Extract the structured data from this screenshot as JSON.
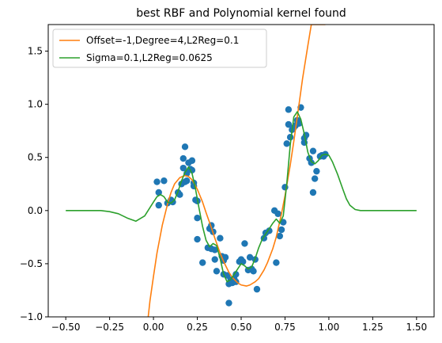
{
  "chart_data": {
    "type": "scatter",
    "title": "best RBF and Polynomial kernel found",
    "xlabel": "",
    "ylabel": "",
    "xlim": [
      -0.6,
      1.6
    ],
    "ylim": [
      -1.0,
      1.75
    ],
    "x_ticks": [
      -0.5,
      -0.25,
      0.0,
      0.25,
      0.5,
      0.75,
      1.0,
      1.25,
      1.5
    ],
    "x_tick_labels": [
      "−0.50",
      "−0.25",
      "0.00",
      "0.25",
      "0.50",
      "0.75",
      "1.00",
      "1.25",
      "1.50"
    ],
    "y_ticks": [
      -1.0,
      -0.5,
      0.0,
      0.5,
      1.0,
      1.5
    ],
    "y_tick_labels": [
      "−1.0",
      "−0.5",
      "0.0",
      "0.5",
      "1.0",
      "1.5"
    ],
    "grid": false,
    "legend": {
      "placement": "upper-left",
      "entries": [
        {
          "label": "Offset=-1,Degree=4,L2Reg=0.1",
          "color": "#ff7f0e"
        },
        {
          "label": "Sigma=0.1,L2Reg=0.0625",
          "color": "#2ca02c"
        }
      ]
    },
    "scatter": {
      "color": "#1f77b4",
      "points": [
        [
          0.02,
          0.27
        ],
        [
          0.03,
          0.17
        ],
        [
          0.03,
          0.05
        ],
        [
          0.06,
          0.28
        ],
        [
          0.08,
          0.07
        ],
        [
          0.1,
          0.1
        ],
        [
          0.11,
          0.08
        ],
        [
          0.14,
          0.17
        ],
        [
          0.15,
          0.15
        ],
        [
          0.16,
          0.25
        ],
        [
          0.17,
          0.4
        ],
        [
          0.17,
          0.49
        ],
        [
          0.18,
          0.6
        ],
        [
          0.18,
          0.27
        ],
        [
          0.19,
          0.35
        ],
        [
          0.19,
          0.28
        ],
        [
          0.2,
          0.45
        ],
        [
          0.21,
          0.39
        ],
        [
          0.22,
          0.47
        ],
        [
          0.22,
          0.38
        ],
        [
          0.23,
          0.23
        ],
        [
          0.23,
          0.26
        ],
        [
          0.24,
          0.1
        ],
        [
          0.25,
          0.09
        ],
        [
          0.25,
          -0.07
        ],
        [
          0.25,
          -0.27
        ],
        [
          0.28,
          -0.49
        ],
        [
          0.31,
          -0.35
        ],
        [
          0.32,
          -0.17
        ],
        [
          0.33,
          -0.14
        ],
        [
          0.33,
          -0.36
        ],
        [
          0.34,
          -0.2
        ],
        [
          0.35,
          -0.37
        ],
        [
          0.35,
          -0.46
        ],
        [
          0.36,
          -0.57
        ],
        [
          0.38,
          -0.26
        ],
        [
          0.39,
          -0.43
        ],
        [
          0.4,
          -0.47
        ],
        [
          0.4,
          -0.6
        ],
        [
          0.41,
          -0.44
        ],
        [
          0.42,
          -0.61
        ],
        [
          0.43,
          -0.69
        ],
        [
          0.43,
          -0.87
        ],
        [
          0.44,
          -0.65
        ],
        [
          0.45,
          -0.68
        ],
        [
          0.46,
          -0.64
        ],
        [
          0.47,
          -0.6
        ],
        [
          0.47,
          -0.67
        ],
        [
          0.49,
          -0.48
        ],
        [
          0.5,
          -0.46
        ],
        [
          0.51,
          -0.48
        ],
        [
          0.52,
          -0.31
        ],
        [
          0.54,
          -0.56
        ],
        [
          0.55,
          -0.44
        ],
        [
          0.56,
          -0.55
        ],
        [
          0.57,
          -0.57
        ],
        [
          0.58,
          -0.46
        ],
        [
          0.59,
          -0.74
        ],
        [
          0.63,
          -0.26
        ],
        [
          0.64,
          -0.21
        ],
        [
          0.66,
          -0.19
        ],
        [
          0.69,
          0.0
        ],
        [
          0.7,
          -0.49
        ],
        [
          0.71,
          -0.03
        ],
        [
          0.72,
          -0.24
        ],
        [
          0.73,
          -0.18
        ],
        [
          0.74,
          -0.11
        ],
        [
          0.75,
          0.22
        ],
        [
          0.76,
          0.63
        ],
        [
          0.77,
          0.81
        ],
        [
          0.77,
          0.95
        ],
        [
          0.78,
          0.69
        ],
        [
          0.79,
          0.76
        ],
        [
          0.8,
          0.78
        ],
        [
          0.81,
          0.8
        ],
        [
          0.82,
          0.85
        ],
        [
          0.83,
          0.82
        ],
        [
          0.84,
          0.97
        ],
        [
          0.86,
          0.68
        ],
        [
          0.86,
          0.64
        ],
        [
          0.87,
          0.71
        ],
        [
          0.89,
          0.49
        ],
        [
          0.9,
          0.45
        ],
        [
          0.91,
          0.56
        ],
        [
          0.91,
          0.17
        ],
        [
          0.92,
          0.3
        ],
        [
          0.93,
          0.37
        ],
        [
          0.95,
          0.51
        ],
        [
          0.96,
          0.52
        ],
        [
          0.97,
          0.51
        ],
        [
          0.98,
          0.53
        ]
      ]
    },
    "series": [
      {
        "name": "Offset=-1,Degree=4,L2Reg=0.1",
        "color": "#ff7f0e",
        "type": "line",
        "x": [
          -0.03,
          -0.02,
          0.0,
          0.02,
          0.05,
          0.08,
          0.1,
          0.12,
          0.15,
          0.18,
          0.2,
          0.22,
          0.25,
          0.28,
          0.3,
          0.33,
          0.35,
          0.38,
          0.4,
          0.43,
          0.45,
          0.48,
          0.5,
          0.53,
          0.55,
          0.58,
          0.6,
          0.63,
          0.65,
          0.68,
          0.7,
          0.73,
          0.75,
          0.78,
          0.8,
          0.83,
          0.85,
          0.88,
          0.9,
          0.93,
          0.95,
          0.98
        ],
        "y": [
          -1.0,
          -0.85,
          -0.62,
          -0.4,
          -0.14,
          0.06,
          0.17,
          0.25,
          0.31,
          0.33,
          0.32,
          0.29,
          0.2,
          0.08,
          -0.02,
          -0.16,
          -0.26,
          -0.4,
          -0.48,
          -0.58,
          -0.63,
          -0.68,
          -0.7,
          -0.71,
          -0.7,
          -0.67,
          -0.64,
          -0.56,
          -0.49,
          -0.36,
          -0.25,
          -0.03,
          0.14,
          0.43,
          0.65,
          1.0,
          1.24,
          1.55,
          1.75,
          1.75,
          1.75,
          1.75
        ]
      },
      {
        "name": "Sigma=0.1,L2Reg=0.0625",
        "color": "#2ca02c",
        "type": "line",
        "x": [
          -0.5,
          -0.4,
          -0.3,
          -0.25,
          -0.2,
          -0.15,
          -0.1,
          -0.05,
          0.0,
          0.02,
          0.04,
          0.06,
          0.08,
          0.1,
          0.12,
          0.14,
          0.16,
          0.18,
          0.2,
          0.22,
          0.24,
          0.26,
          0.28,
          0.3,
          0.32,
          0.34,
          0.36,
          0.38,
          0.4,
          0.42,
          0.44,
          0.46,
          0.48,
          0.5,
          0.52,
          0.54,
          0.56,
          0.58,
          0.6,
          0.62,
          0.64,
          0.66,
          0.68,
          0.7,
          0.72,
          0.74,
          0.76,
          0.78,
          0.8,
          0.82,
          0.84,
          0.86,
          0.88,
          0.9,
          0.92,
          0.94,
          0.96,
          0.98,
          1.0,
          1.02,
          1.05,
          1.08,
          1.1,
          1.12,
          1.15,
          1.18,
          1.2,
          1.25,
          1.3,
          1.4,
          1.5
        ],
        "y": [
          0.0,
          0.0,
          0.0,
          -0.01,
          -0.03,
          -0.07,
          -0.1,
          -0.05,
          0.08,
          0.13,
          0.15,
          0.13,
          0.08,
          0.07,
          0.1,
          0.18,
          0.28,
          0.36,
          0.41,
          0.35,
          0.2,
          0.02,
          -0.15,
          -0.28,
          -0.34,
          -0.31,
          -0.33,
          -0.45,
          -0.6,
          -0.67,
          -0.65,
          -0.6,
          -0.55,
          -0.5,
          -0.52,
          -0.55,
          -0.53,
          -0.45,
          -0.35,
          -0.27,
          -0.22,
          -0.17,
          -0.12,
          -0.08,
          -0.12,
          -0.05,
          0.25,
          0.62,
          0.88,
          0.93,
          0.86,
          0.72,
          0.55,
          0.46,
          0.44,
          0.47,
          0.52,
          0.53,
          0.52,
          0.46,
          0.34,
          0.2,
          0.11,
          0.05,
          0.01,
          0.0,
          0.0,
          0.0,
          0.0,
          0.0,
          0.0
        ]
      }
    ]
  }
}
